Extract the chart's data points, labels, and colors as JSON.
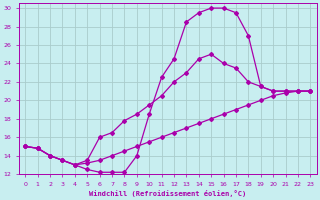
{
  "xlabel": "Windchill (Refroidissement éolien,°C)",
  "bg_color": "#c8eef0",
  "line_color": "#aa00aa",
  "grid_color": "#aacccc",
  "xlim": [
    -0.5,
    23.5
  ],
  "ylim": [
    12,
    30.5
  ],
  "xticks": [
    0,
    1,
    2,
    3,
    4,
    5,
    6,
    7,
    8,
    9,
    10,
    11,
    12,
    13,
    14,
    15,
    16,
    17,
    18,
    19,
    20,
    21,
    22,
    23
  ],
  "yticks": [
    12,
    14,
    16,
    18,
    20,
    22,
    24,
    26,
    28,
    30
  ],
  "curve1_x": [
    0,
    1,
    2,
    3,
    4,
    5,
    6,
    7,
    8,
    9,
    10,
    11,
    12,
    13,
    14,
    15,
    16,
    17,
    18,
    19,
    20,
    21,
    22,
    23
  ],
  "curve1_y": [
    15.0,
    14.8,
    14.0,
    13.5,
    13.0,
    12.5,
    12.2,
    12.2,
    12.2,
    14.0,
    18.5,
    22.5,
    24.5,
    28.5,
    29.5,
    30.0,
    30.0,
    29.5,
    27.0,
    21.5,
    21.0,
    21.0,
    21.0,
    21.0
  ],
  "curve2_x": [
    0,
    1,
    2,
    3,
    4,
    5,
    6,
    7,
    8,
    9,
    10,
    11,
    12,
    13,
    14,
    15,
    16,
    17,
    18,
    19,
    20,
    21,
    22,
    23
  ],
  "curve2_y": [
    15.0,
    14.8,
    14.0,
    13.5,
    13.0,
    13.5,
    16.0,
    16.5,
    17.8,
    18.5,
    19.5,
    20.5,
    22.0,
    23.0,
    24.5,
    25.0,
    24.0,
    23.5,
    22.0,
    21.5,
    21.0,
    21.0,
    21.0,
    21.0
  ],
  "curve3_x": [
    0,
    1,
    2,
    3,
    4,
    5,
    6,
    7,
    8,
    9,
    10,
    11,
    12,
    13,
    14,
    15,
    16,
    17,
    18,
    19,
    20,
    21,
    22,
    23
  ],
  "curve3_y": [
    15.0,
    14.8,
    14.0,
    13.5,
    13.0,
    13.2,
    13.5,
    14.0,
    14.5,
    15.0,
    15.5,
    16.0,
    16.5,
    17.0,
    17.5,
    18.0,
    18.5,
    19.0,
    19.5,
    20.0,
    20.5,
    20.8,
    21.0,
    21.0
  ]
}
